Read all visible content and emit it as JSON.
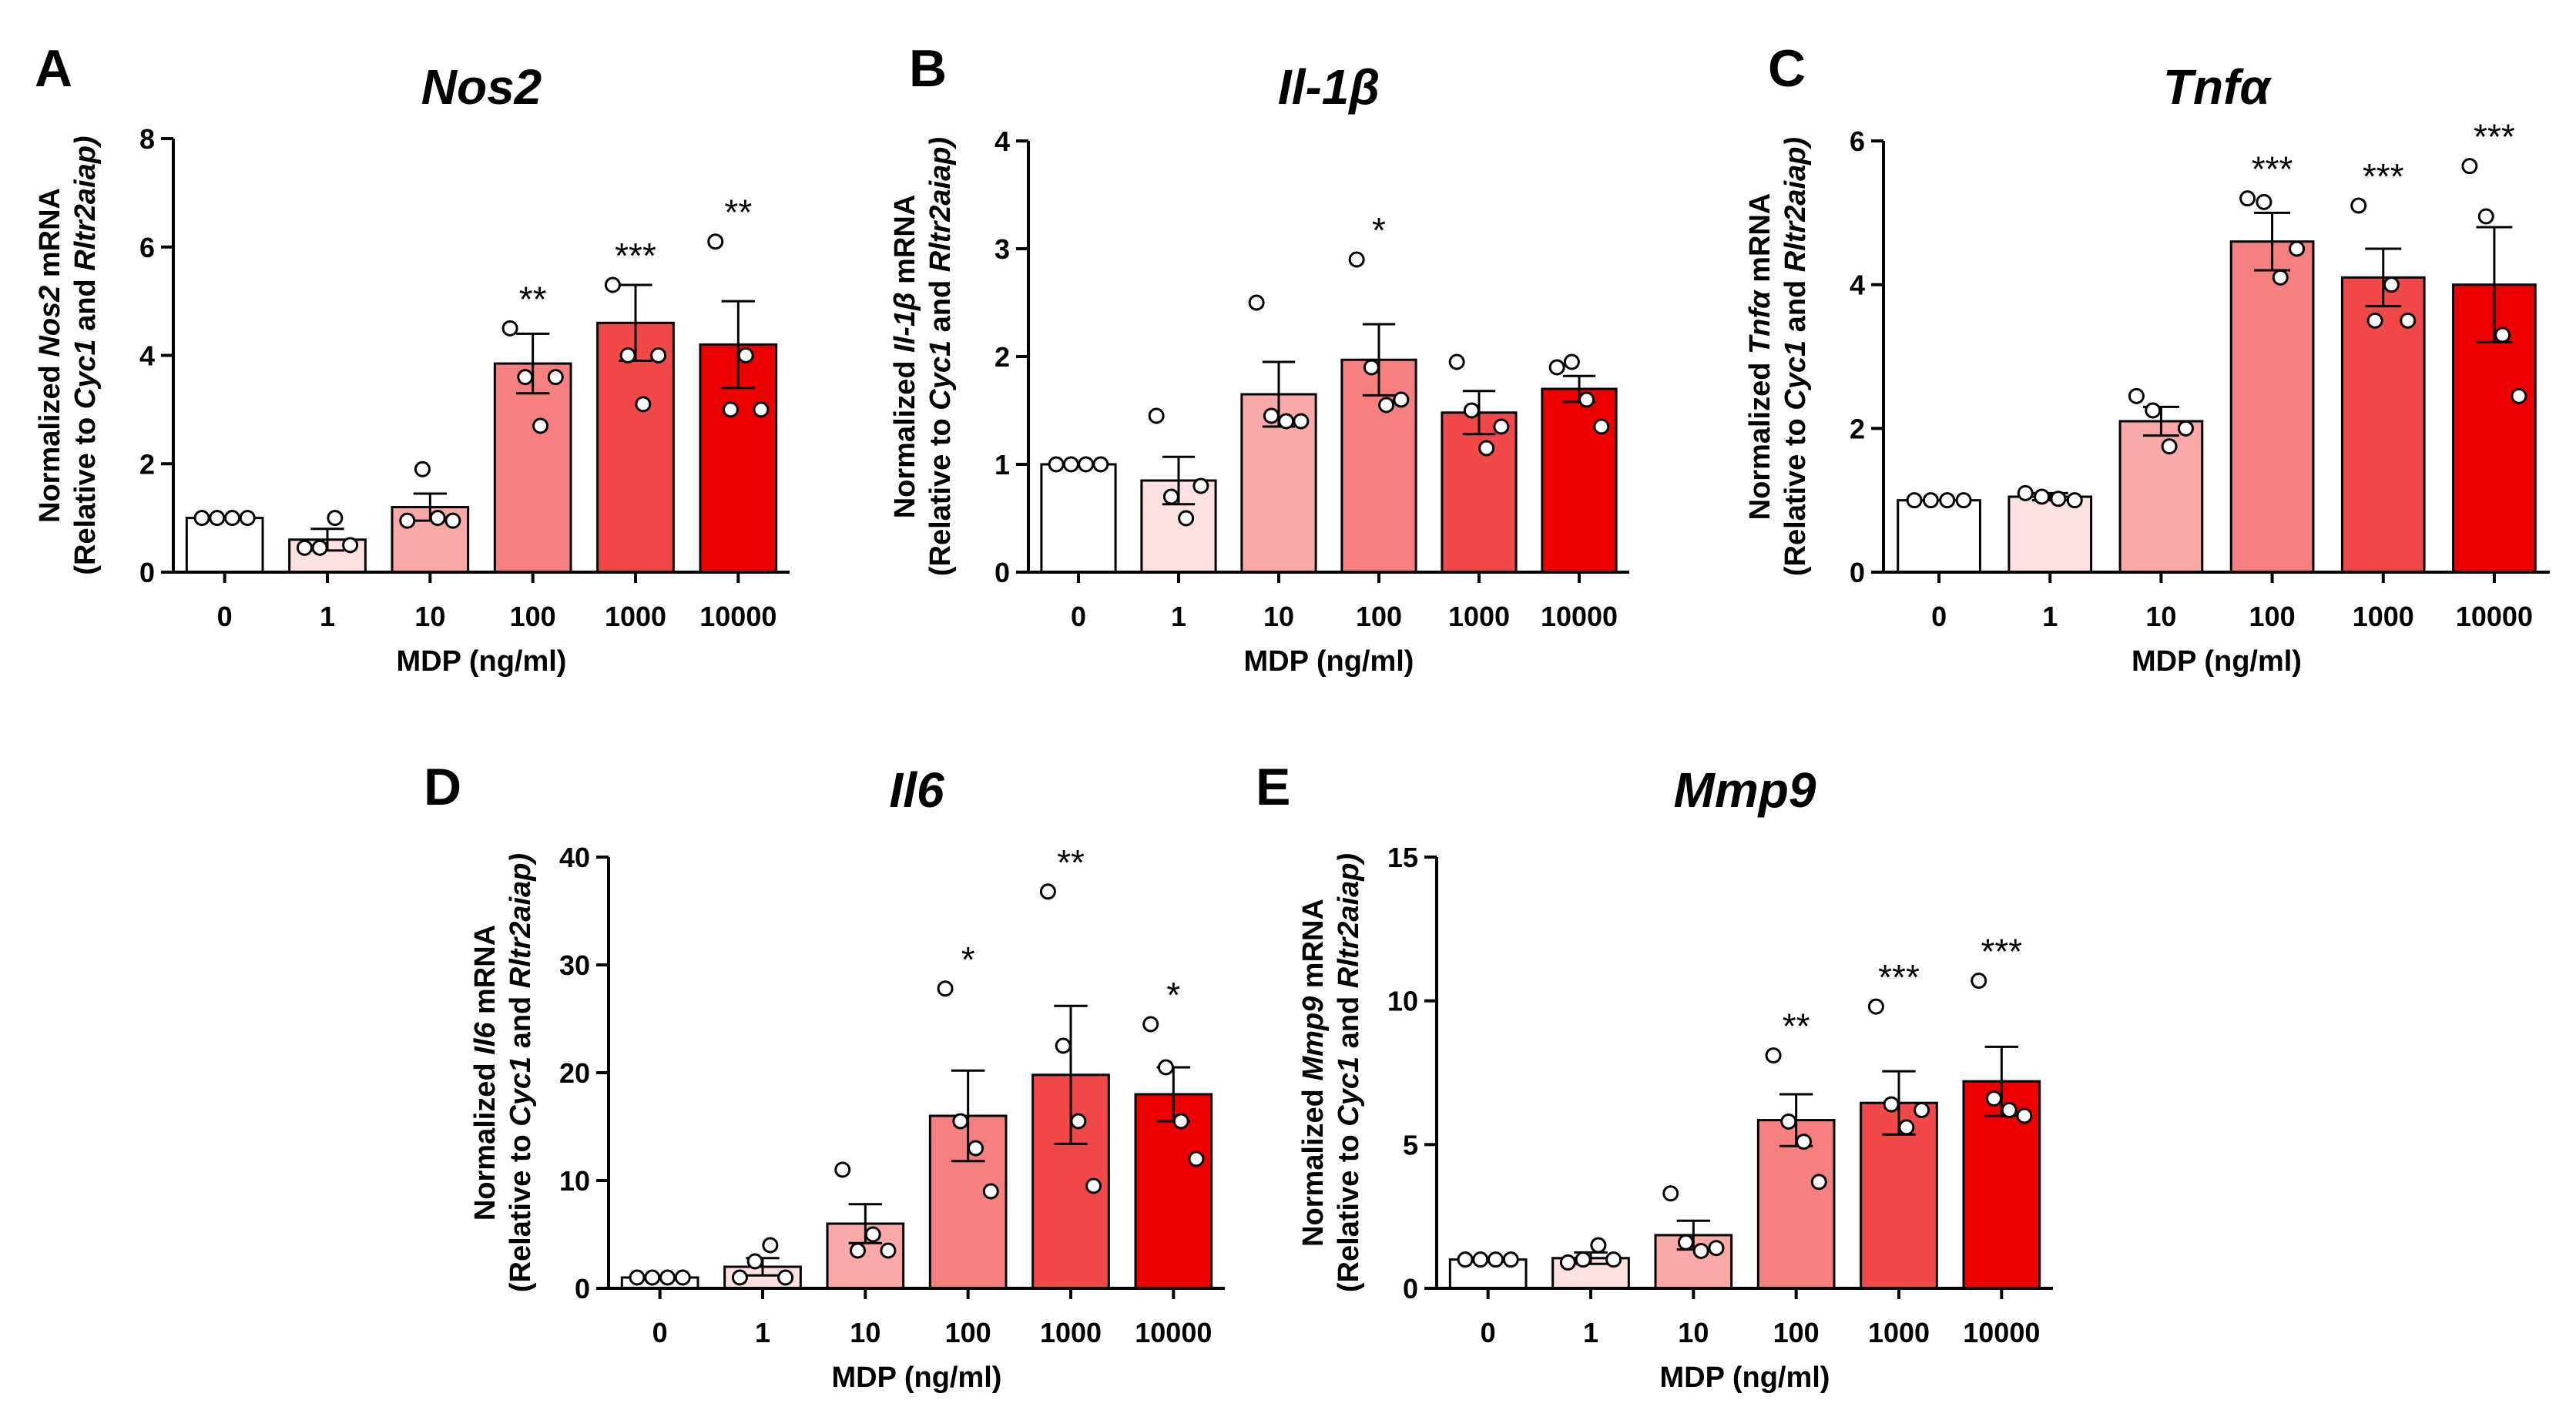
{
  "colors": {
    "bars": [
      "#ffffff",
      "#fde0e0",
      "#f9a9a8",
      "#f6807f",
      "#f14849",
      "#ee0000"
    ],
    "axis": "#000000",
    "point_fill": "#ffffff"
  },
  "icons": {
    "point_marker": "open-circle"
  },
  "chart_data": [
    {
      "type": "bar",
      "letter": "A",
      "title": "Nos2",
      "ylabel_line1": [
        {
          "t": "Normalized ",
          "i": false
        },
        {
          "t": "Nos2",
          "i": true
        },
        {
          "t": " mRNA",
          "i": false
        }
      ],
      "ylabel_line2": [
        {
          "t": "(Relative to ",
          "i": false
        },
        {
          "t": "Cyc1",
          "i": true
        },
        {
          "t": " and ",
          "i": false
        },
        {
          "t": "Rltr2aiap)",
          "i": true
        }
      ],
      "xlabel": "MDP (ng/ml)",
      "categories": [
        "0",
        "1",
        "10",
        "100",
        "1000",
        "10000"
      ],
      "ylim": [
        0,
        8
      ],
      "yticks": [
        0,
        2,
        4,
        6,
        8
      ],
      "values": [
        1.0,
        0.6,
        1.2,
        3.85,
        4.6,
        4.2
      ],
      "sem": [
        0.0,
        0.2,
        0.25,
        0.55,
        0.7,
        0.8
      ],
      "points": [
        [
          1.0,
          1.0,
          1.0,
          1.0
        ],
        [
          0.45,
          0.45,
          1.0,
          0.5
        ],
        [
          0.95,
          1.9,
          1.0,
          0.95
        ],
        [
          4.5,
          3.6,
          2.7,
          3.6
        ],
        [
          5.3,
          4.0,
          3.1,
          4.0
        ],
        [
          6.1,
          3.0,
          4.0,
          3.0
        ]
      ],
      "significance": [
        "",
        "",
        "",
        "**",
        "***",
        "**"
      ],
      "grid": false,
      "legend": "none"
    },
    {
      "type": "bar",
      "letter": "B",
      "title": "Il-1β",
      "ylabel_line1": [
        {
          "t": "Normalized ",
          "i": false
        },
        {
          "t": "Il-1β",
          "i": true
        },
        {
          "t": " mRNA",
          "i": false
        }
      ],
      "ylabel_line2": [
        {
          "t": "(Relative to ",
          "i": false
        },
        {
          "t": "Cyc1",
          "i": true
        },
        {
          "t": " and ",
          "i": false
        },
        {
          "t": "Rltr2aiap)",
          "i": true
        }
      ],
      "xlabel": "MDP (ng/ml)",
      "categories": [
        "0",
        "1",
        "10",
        "100",
        "1000",
        "10000"
      ],
      "ylim": [
        0,
        4
      ],
      "yticks": [
        0,
        1,
        2,
        3,
        4
      ],
      "values": [
        1.0,
        0.85,
        1.65,
        1.97,
        1.48,
        1.7
      ],
      "sem": [
        0.0,
        0.22,
        0.3,
        0.33,
        0.2,
        0.12
      ],
      "points": [
        [
          1.0,
          1.0,
          1.0,
          1.0
        ],
        [
          1.45,
          0.7,
          0.5,
          0.8
        ],
        [
          2.5,
          1.45,
          1.4,
          1.4
        ],
        [
          2.9,
          1.9,
          1.55,
          1.6
        ],
        [
          1.95,
          1.5,
          1.15,
          1.35
        ],
        [
          1.9,
          1.95,
          1.6,
          1.35
        ]
      ],
      "significance": [
        "",
        "",
        "",
        "*",
        "",
        ""
      ],
      "grid": false,
      "legend": "none"
    },
    {
      "type": "bar",
      "letter": "C",
      "title": "Tnfα",
      "ylabel_line1": [
        {
          "t": "Normalized ",
          "i": false
        },
        {
          "t": "Tnfα",
          "i": true
        },
        {
          "t": " mRNA",
          "i": false
        }
      ],
      "ylabel_line2": [
        {
          "t": "(Relative to ",
          "i": false
        },
        {
          "t": "Cyc1",
          "i": true
        },
        {
          "t": " and ",
          "i": false
        },
        {
          "t": "Rltr2aiap)",
          "i": true
        }
      ],
      "xlabel": "MDP (ng/ml)",
      "categories": [
        "0",
        "1",
        "10",
        "100",
        "1000",
        "10000"
      ],
      "ylim": [
        0,
        6
      ],
      "yticks": [
        0,
        2,
        4,
        6
      ],
      "values": [
        1.0,
        1.05,
        2.1,
        4.6,
        4.1,
        4.0
      ],
      "sem": [
        0.0,
        0.05,
        0.2,
        0.4,
        0.4,
        0.8
      ],
      "points": [
        [
          1.0,
          1.0,
          1.0,
          1.0
        ],
        [
          1.1,
          1.05,
          1.02,
          1.0
        ],
        [
          2.45,
          2.25,
          1.75,
          2.0
        ],
        [
          5.2,
          5.15,
          4.1,
          4.5
        ],
        [
          5.1,
          3.5,
          4.0,
          3.5
        ],
        [
          5.65,
          4.95,
          3.3,
          2.45
        ]
      ],
      "significance": [
        "",
        "",
        "",
        "***",
        "***",
        "***"
      ],
      "grid": false,
      "legend": "none"
    },
    {
      "type": "bar",
      "letter": "D",
      "title": "Il6",
      "ylabel_line1": [
        {
          "t": "Normalized ",
          "i": false
        },
        {
          "t": "Il6",
          "i": true
        },
        {
          "t": " mRNA",
          "i": false
        }
      ],
      "ylabel_line2": [
        {
          "t": "(Relative to ",
          "i": false
        },
        {
          "t": "Cyc1",
          "i": true
        },
        {
          "t": " and ",
          "i": false
        },
        {
          "t": "Rltr2aiap)",
          "i": true
        }
      ],
      "xlabel": "MDP (ng/ml)",
      "categories": [
        "0",
        "1",
        "10",
        "100",
        "1000",
        "10000"
      ],
      "ylim": [
        0,
        40
      ],
      "yticks": [
        0,
        10,
        20,
        30,
        40
      ],
      "values": [
        1.0,
        2.0,
        6.0,
        16.0,
        19.8,
        18.0
      ],
      "sem": [
        0.0,
        0.8,
        1.8,
        4.2,
        6.4,
        2.5
      ],
      "points": [
        [
          1.0,
          1.0,
          1.0,
          1.0
        ],
        [
          1.0,
          2.5,
          4.0,
          1.0
        ],
        [
          11.0,
          3.5,
          5.0,
          3.5
        ],
        [
          27.8,
          15.5,
          13.0,
          9.0
        ],
        [
          36.8,
          22.5,
          15.5,
          9.5
        ],
        [
          24.5,
          20.5,
          15.5,
          12.0
        ]
      ],
      "significance": [
        "",
        "",
        "",
        "*",
        "**",
        "*"
      ],
      "grid": false,
      "legend": "none"
    },
    {
      "type": "bar",
      "letter": "E",
      "title": "Mmp9",
      "ylabel_line1": [
        {
          "t": "Normalized ",
          "i": false
        },
        {
          "t": "Mmp9",
          "i": true
        },
        {
          "t": " mRNA",
          "i": false
        }
      ],
      "ylabel_line2": [
        {
          "t": "(Relative to ",
          "i": false
        },
        {
          "t": "Cyc1",
          "i": true
        },
        {
          "t": " and ",
          "i": false
        },
        {
          "t": "Rltr2aiap)",
          "i": true
        }
      ],
      "xlabel": "MDP (ng/ml)",
      "categories": [
        "0",
        "1",
        "10",
        "100",
        "1000",
        "10000"
      ],
      "ylim": [
        0,
        15
      ],
      "yticks": [
        0,
        5,
        10,
        15
      ],
      "values": [
        1.0,
        1.05,
        1.85,
        5.85,
        6.45,
        7.2
      ],
      "sem": [
        0.0,
        0.2,
        0.5,
        0.9,
        1.1,
        1.2
      ],
      "points": [
        [
          1.0,
          1.0,
          1.0,
          1.0
        ],
        [
          0.9,
          1.0,
          1.5,
          1.0
        ],
        [
          3.3,
          1.6,
          1.3,
          1.4
        ],
        [
          8.1,
          5.8,
          5.1,
          3.7
        ],
        [
          9.8,
          6.4,
          5.6,
          6.2
        ],
        [
          10.7,
          6.6,
          6.2,
          6.0
        ]
      ],
      "significance": [
        "",
        "",
        "",
        "**",
        "***",
        "***"
      ],
      "grid": false,
      "legend": "none"
    }
  ]
}
